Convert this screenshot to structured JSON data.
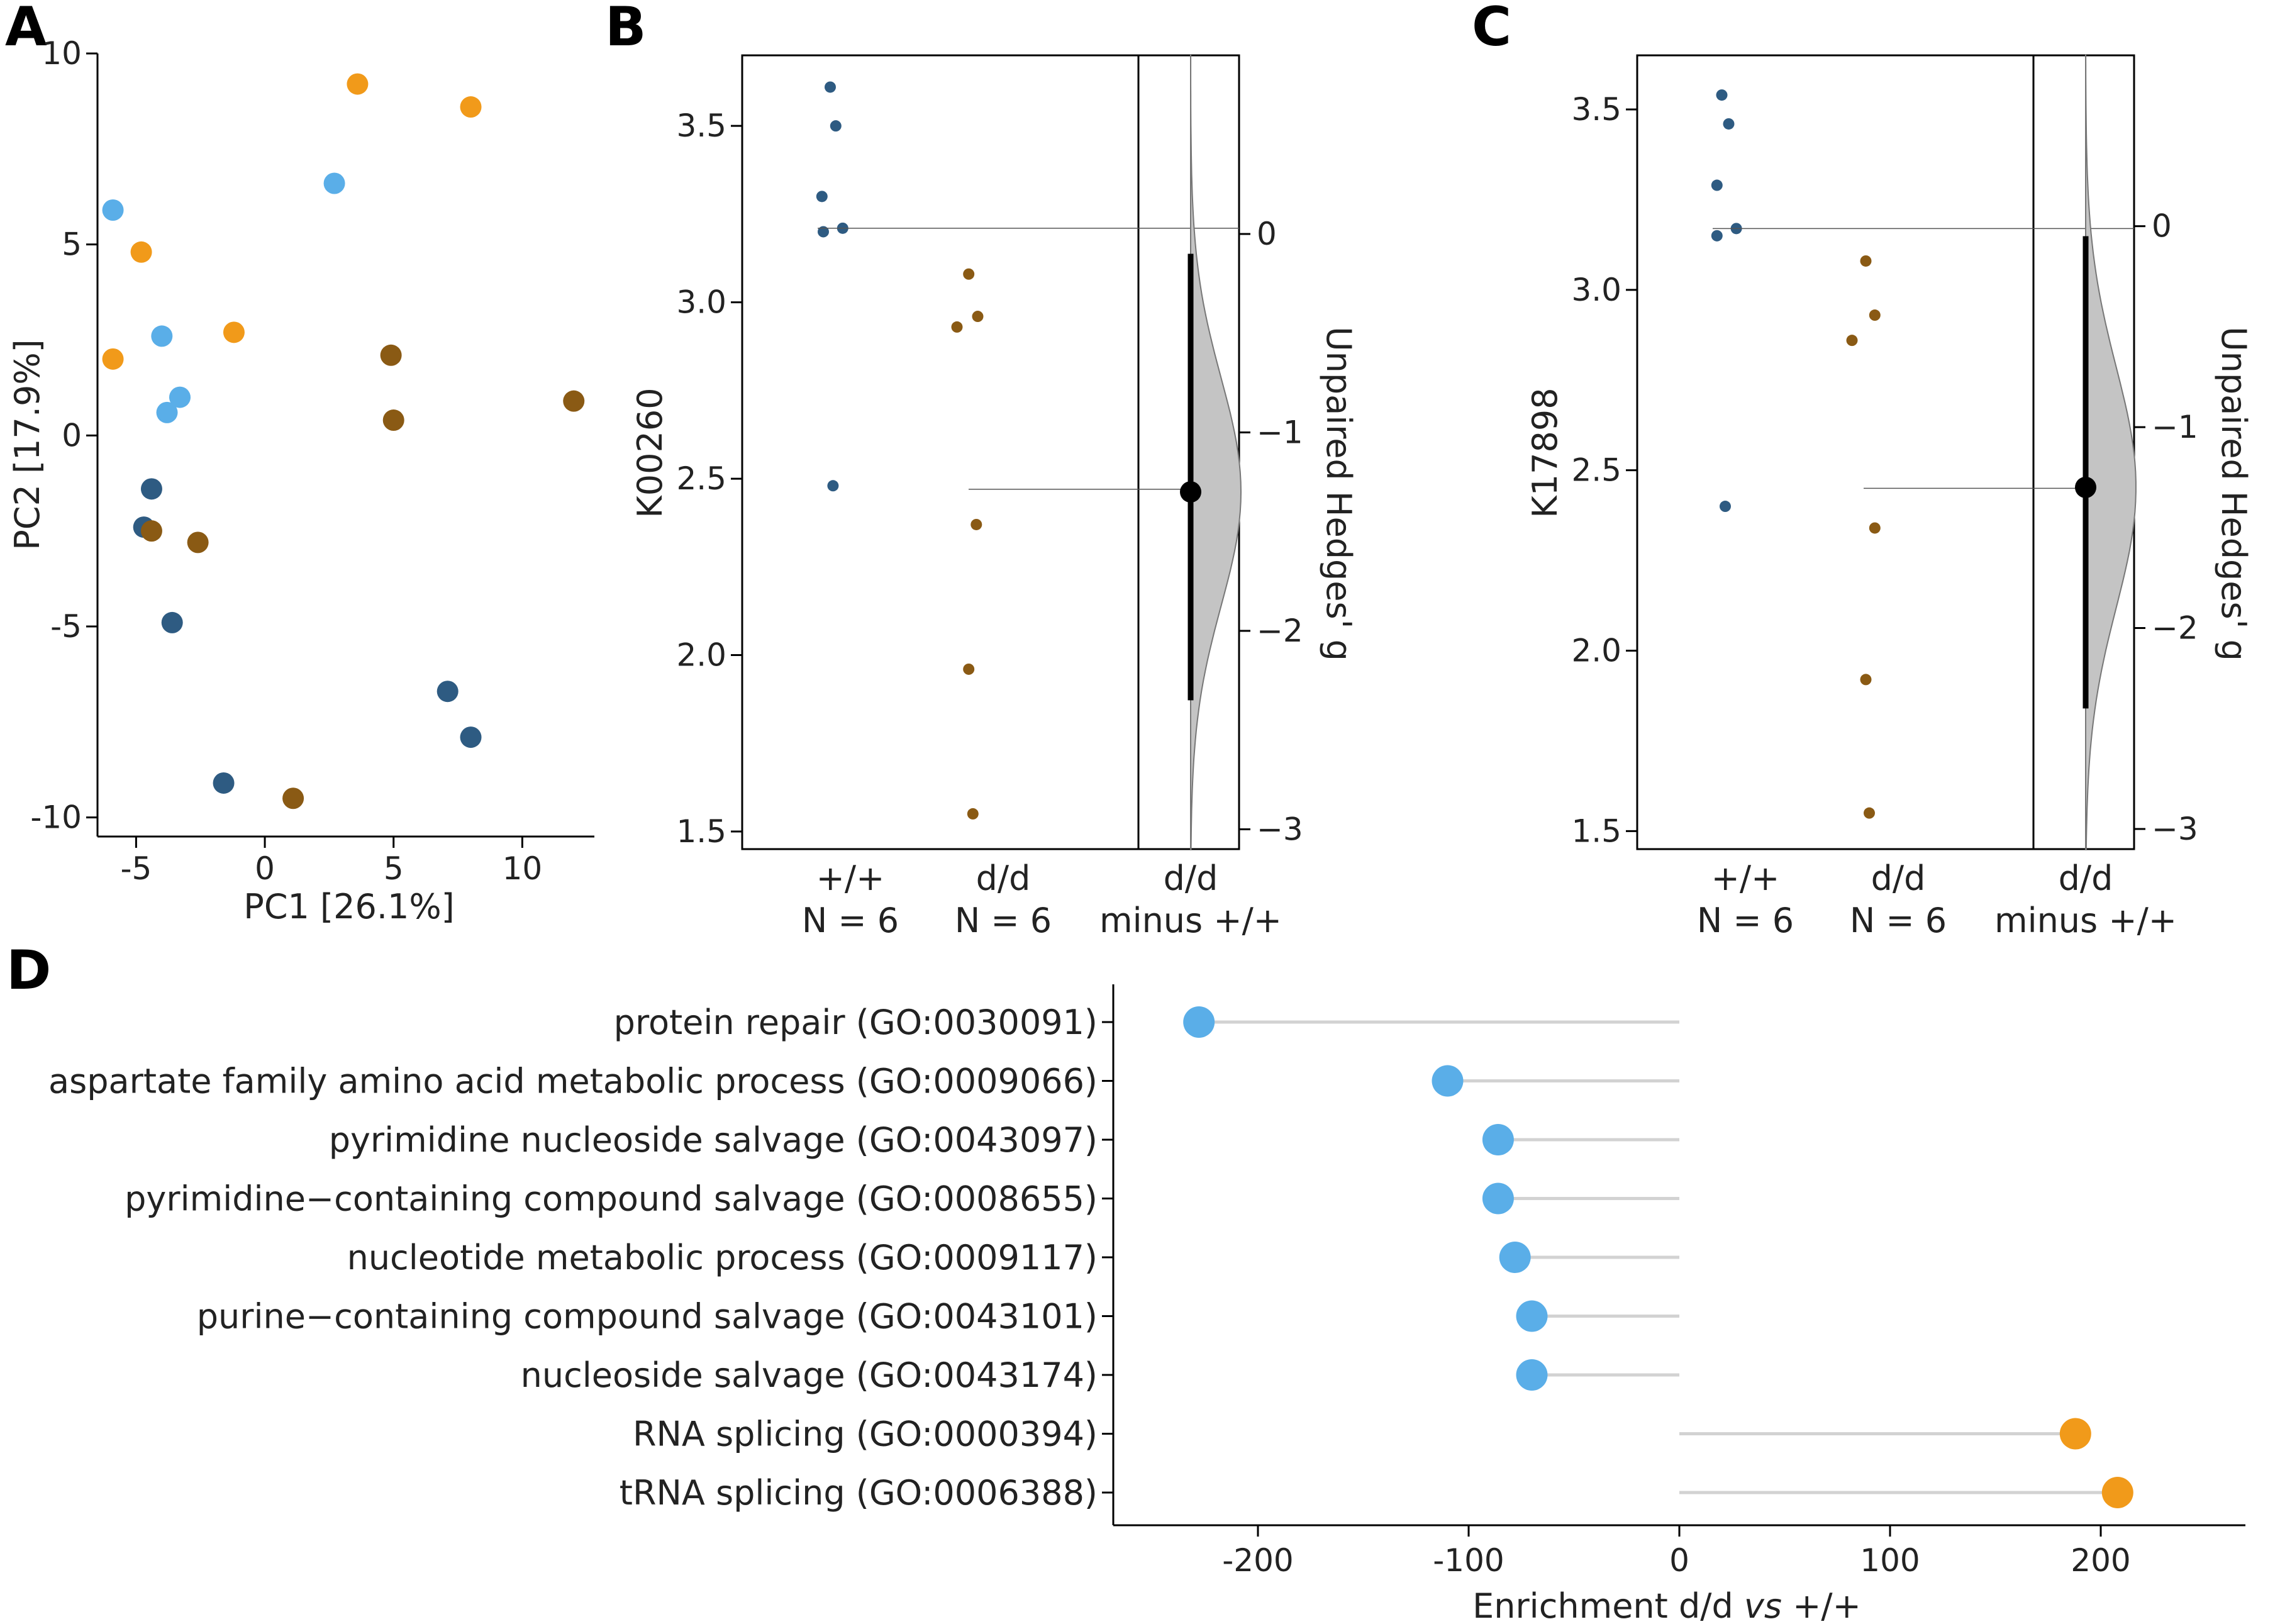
{
  "colors": {
    "light_blue": "#5aaee8",
    "dark_blue": "#2e5b82",
    "orange": "#f19a1a",
    "brown": "#8a5a14",
    "stem": "#d2d2d2",
    "density": "#c4c4c4"
  },
  "panel_labels": {
    "a": "A",
    "b": "B",
    "c": "C",
    "d": "D"
  },
  "chart_data": [
    {
      "id": "A",
      "type": "scatter",
      "title": "",
      "xlabel": "PC1 [26.1%]",
      "ylabel": "PC2 [17.9%]",
      "xlim": [
        -6.5,
        12.8
      ],
      "ylim": [
        -10.5,
        10.0
      ],
      "xticks": [
        -5,
        0,
        5,
        10
      ],
      "xtick_labels": [
        "-5",
        "0",
        "5",
        "10"
      ],
      "yticks": [
        -10,
        -5,
        0,
        5,
        10
      ],
      "ytick_labels": [
        "-10",
        "-5",
        "0",
        "5",
        "10"
      ],
      "points": [
        {
          "x": 3.6,
          "y": 9.2,
          "group": "orange"
        },
        {
          "x": 8.0,
          "y": 8.6,
          "group": "orange"
        },
        {
          "x": 2.7,
          "y": 6.6,
          "group": "light_blue"
        },
        {
          "x": -5.9,
          "y": 5.9,
          "group": "light_blue"
        },
        {
          "x": -4.8,
          "y": 4.8,
          "group": "orange"
        },
        {
          "x": -1.2,
          "y": 2.7,
          "group": "orange"
        },
        {
          "x": -5.9,
          "y": 2.0,
          "group": "orange"
        },
        {
          "x": -4.0,
          "y": 2.6,
          "group": "light_blue"
        },
        {
          "x": -3.3,
          "y": 1.0,
          "group": "light_blue"
        },
        {
          "x": -3.8,
          "y": 0.6,
          "group": "light_blue"
        },
        {
          "x": 4.9,
          "y": 2.1,
          "group": "brown"
        },
        {
          "x": 12.0,
          "y": 0.9,
          "group": "brown"
        },
        {
          "x": 5.0,
          "y": 0.4,
          "group": "brown"
        },
        {
          "x": -4.4,
          "y": -1.4,
          "group": "dark_blue"
        },
        {
          "x": -4.7,
          "y": -2.4,
          "group": "dark_blue"
        },
        {
          "x": -4.4,
          "y": -2.5,
          "group": "brown"
        },
        {
          "x": -2.6,
          "y": -2.8,
          "group": "brown"
        },
        {
          "x": -3.6,
          "y": -4.9,
          "group": "dark_blue"
        },
        {
          "x": 7.1,
          "y": -6.7,
          "group": "dark_blue"
        },
        {
          "x": 8.0,
          "y": -7.9,
          "group": "dark_blue"
        },
        {
          "x": -1.6,
          "y": -9.1,
          "group": "dark_blue"
        },
        {
          "x": 1.1,
          "y": -9.5,
          "group": "brown"
        }
      ]
    },
    {
      "id": "B",
      "type": "scatter",
      "title": "",
      "ylabel": "K00260",
      "right_ylabel": "Unpaired Hedges' g",
      "ylim": [
        1.45,
        3.7
      ],
      "yticks": [
        1.5,
        2.0,
        2.5,
        3.0,
        3.5
      ],
      "ytick_labels": [
        "1.5",
        "2.0",
        "2.5",
        "3.0",
        "3.5"
      ],
      "right_ylim": [
        -3.1,
        0.9
      ],
      "right_yticks": [
        0,
        -1,
        -2,
        -3
      ],
      "right_ytick_labels": [
        "0",
        "−1",
        "−2",
        "−3"
      ],
      "groups": [
        {
          "name": "+/+",
          "n_label": "N = 6",
          "color": "dark_blue",
          "mean": 3.21,
          "points": [
            {
              "dx": 0.0,
              "y": 3.61
            },
            {
              "dx": 0.08,
              "y": 3.5
            },
            {
              "dx": -0.12,
              "y": 3.3
            },
            {
              "dx": -0.1,
              "y": 3.2
            },
            {
              "dx": 0.18,
              "y": 3.21
            },
            {
              "dx": 0.04,
              "y": 2.48
            }
          ]
        },
        {
          "name": "d/d",
          "n_label": "N = 6",
          "color": "brown",
          "mean": 2.47,
          "points": [
            {
              "dx": -0.18,
              "y": 3.08
            },
            {
              "dx": -0.35,
              "y": 2.93
            },
            {
              "dx": -0.05,
              "y": 2.96
            },
            {
              "dx": -0.07,
              "y": 2.37
            },
            {
              "dx": -0.18,
              "y": 1.96
            },
            {
              "dx": -0.12,
              "y": 1.55
            }
          ]
        }
      ],
      "effect": {
        "label_line1": "d/d",
        "label_line2": "minus +/+",
        "g": -1.3,
        "ci_low": -2.35,
        "ci_high": -0.1
      }
    },
    {
      "id": "C",
      "type": "scatter",
      "title": "",
      "ylabel": "K17898",
      "right_ylabel": "Unpaired Hedges' g",
      "ylim": [
        1.45,
        3.65
      ],
      "yticks": [
        1.5,
        2.0,
        2.5,
        3.0,
        3.5
      ],
      "ytick_labels": [
        "1.5",
        "2.0",
        "2.5",
        "3.0",
        "3.5"
      ],
      "right_ylim": [
        -3.1,
        0.85
      ],
      "right_yticks": [
        0,
        -1,
        -2,
        -3
      ],
      "right_ytick_labels": [
        "0",
        "−1",
        "−2",
        "−3"
      ],
      "groups": [
        {
          "name": "+/+",
          "n_label": "N = 6",
          "color": "dark_blue",
          "mean": 3.17,
          "points": [
            {
              "dx": -0.05,
              "y": 3.54
            },
            {
              "dx": 0.05,
              "y": 3.46
            },
            {
              "dx": -0.12,
              "y": 3.29
            },
            {
              "dx": -0.12,
              "y": 3.15
            },
            {
              "dx": 0.16,
              "y": 3.17
            },
            {
              "dx": 0.0,
              "y": 2.4
            }
          ]
        },
        {
          "name": "d/d",
          "n_label": "N = 6",
          "color": "brown",
          "mean": 2.45,
          "points": [
            {
              "dx": -0.15,
              "y": 3.08
            },
            {
              "dx": -0.02,
              "y": 2.93
            },
            {
              "dx": -0.35,
              "y": 2.86
            },
            {
              "dx": -0.02,
              "y": 2.34
            },
            {
              "dx": -0.15,
              "y": 1.92
            },
            {
              "dx": -0.1,
              "y": 1.55
            }
          ]
        }
      ],
      "effect": {
        "label_line1": "d/d",
        "label_line2": "minus +/+",
        "g": -1.3,
        "ci_low": -2.4,
        "ci_high": -0.05
      }
    },
    {
      "id": "D",
      "type": "lollipop",
      "title": "",
      "xlabel_prefix": "Enrichment d/d ",
      "xlabel_italic": "vs",
      "xlabel_suffix": " +/+",
      "xlim": [
        -270,
        270
      ],
      "xticks": [
        -200,
        -100,
        0,
        100,
        200
      ],
      "xtick_labels": [
        "-200",
        "-100",
        "0",
        "100",
        "200"
      ],
      "categories": [
        "protein repair (GO:0030091)",
        "aspartate family amino acid metabolic process (GO:0009066)",
        "pyrimidine nucleoside salvage (GO:0043097)",
        "pyrimidine−containing compound salvage (GO:0008655)",
        "nucleotide metabolic process (GO:0009117)",
        "purine−containing compound salvage (GO:0043101)",
        "nucleoside salvage (GO:0043174)",
        "RNA splicing (GO:0000394)",
        "tRNA splicing (GO:0006388)"
      ],
      "values": [
        -228,
        -110,
        -86,
        -86,
        -78,
        -70,
        -70,
        188,
        208
      ]
    }
  ]
}
